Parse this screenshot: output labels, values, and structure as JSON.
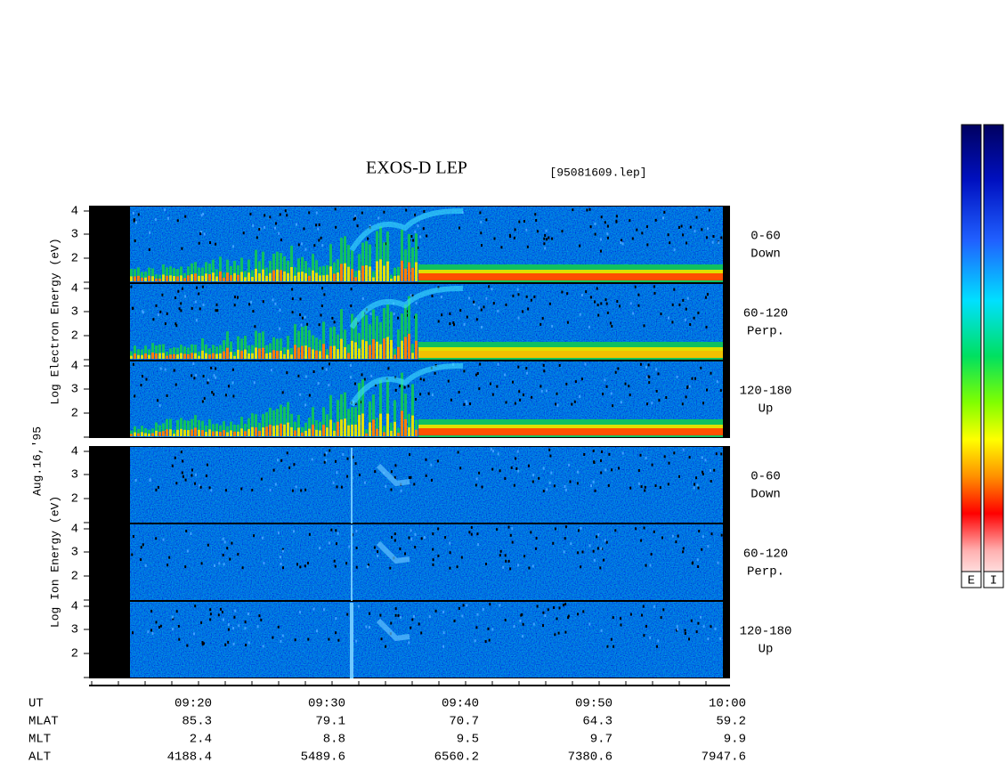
{
  "header": {
    "title": "EXOS-D LEP",
    "file": "[95081609.lep]"
  },
  "date_label": "Aug.16,'95",
  "electron": {
    "axis_label": "Log  Electron  Energy (eV)",
    "panels": [
      {
        "ticks": [
          "4",
          "3",
          "2"
        ],
        "angle": "0-60",
        "direction": "Down"
      },
      {
        "ticks": [
          "4",
          "3",
          "2"
        ],
        "angle": "60-120",
        "direction": "Perp."
      },
      {
        "ticks": [
          "4",
          "3",
          "2"
        ],
        "angle": "120-180",
        "direction": "Up"
      }
    ]
  },
  "ion": {
    "axis_label": "Log  Ion  Energy (eV)",
    "panels": [
      {
        "ticks": [
          "4",
          "3",
          "2"
        ],
        "angle": "0-60",
        "direction": "Down"
      },
      {
        "ticks": [
          "4",
          "3",
          "2"
        ],
        "angle": "60-120",
        "direction": "Perp."
      },
      {
        "ticks": [
          "4",
          "3",
          "2"
        ],
        "angle": "120-180",
        "direction": "Up"
      }
    ]
  },
  "ephemeris": {
    "rows": [
      {
        "label": "UT",
        "values": [
          "09:20",
          "09:30",
          "09:40",
          "09:50",
          "10:00"
        ]
      },
      {
        "label": "MLAT",
        "values": [
          "85.3",
          "79.1",
          "70.7",
          "64.3",
          "59.2"
        ]
      },
      {
        "label": "MLT",
        "values": [
          "2.4",
          "8.8",
          "9.5",
          "9.7",
          "9.9"
        ]
      },
      {
        "label": "ALT",
        "values": [
          "4188.4",
          "5489.6",
          "6560.2",
          "7380.6",
          "7947.6"
        ]
      }
    ]
  },
  "colorbars": [
    "E",
    "I"
  ]
}
